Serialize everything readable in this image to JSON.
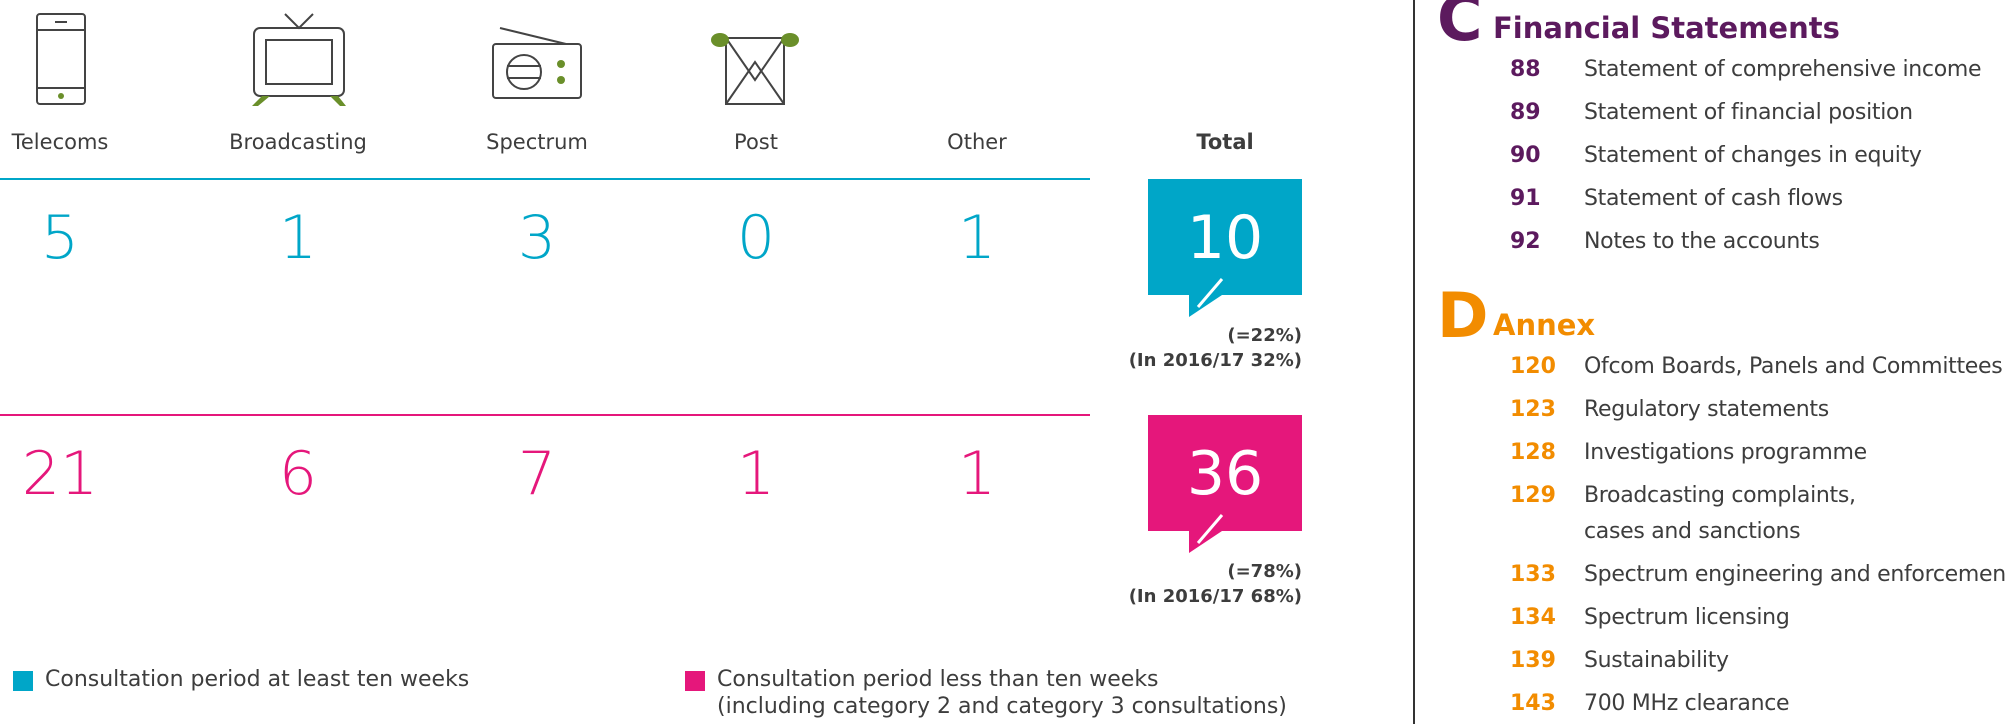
{
  "infographic": {
    "categories": [
      "Telecoms",
      "Broadcasting",
      "Spectrum",
      "Post",
      "Other"
    ],
    "total_label": "Total",
    "rows": [
      {
        "color": "#00a6c8",
        "values": [
          5,
          1,
          3,
          0,
          1
        ],
        "total": 10,
        "share": "(=22%)",
        "previous": "(In 2016/17 32%)",
        "legend": [
          "Consultation period at least ten weeks"
        ]
      },
      {
        "color": "#e5177b",
        "values": [
          21,
          6,
          7,
          1,
          1
        ],
        "total": 36,
        "share": "(=78%)",
        "previous": "(In 2016/17 68%)",
        "legend": [
          "Consultation period less than ten weeks",
          "(including category 2 and category 3 consultations)"
        ]
      }
    ]
  },
  "contents": {
    "sections": [
      {
        "letter": "C",
        "title": "Financial Statements",
        "color": "#5c1a5e",
        "items": [
          {
            "page": 88,
            "title": [
              "Statement of comprehensive income"
            ]
          },
          {
            "page": 89,
            "title": [
              "Statement of financial position"
            ]
          },
          {
            "page": 90,
            "title": [
              "Statement of changes in equity"
            ]
          },
          {
            "page": 91,
            "title": [
              "Statement of cash flows"
            ]
          },
          {
            "page": 92,
            "title": [
              "Notes to the accounts"
            ]
          }
        ]
      },
      {
        "letter": "D",
        "title": "Annex",
        "color": "#f28c00",
        "items": [
          {
            "page": 120,
            "title": [
              "Ofcom Boards, Panels and Committees"
            ]
          },
          {
            "page": 123,
            "title": [
              "Regulatory statements"
            ]
          },
          {
            "page": 128,
            "title": [
              "Investigations programme"
            ]
          },
          {
            "page": 129,
            "title": [
              "Broadcasting complaints,",
              "cases and sanctions"
            ]
          },
          {
            "page": 133,
            "title": [
              "Spectrum engineering and enforcement"
            ]
          },
          {
            "page": 134,
            "title": [
              "Spectrum licensing"
            ]
          },
          {
            "page": 139,
            "title": [
              "Sustainability"
            ]
          },
          {
            "page": 143,
            "title": [
              "700 MHz clearance"
            ]
          }
        ]
      }
    ]
  }
}
